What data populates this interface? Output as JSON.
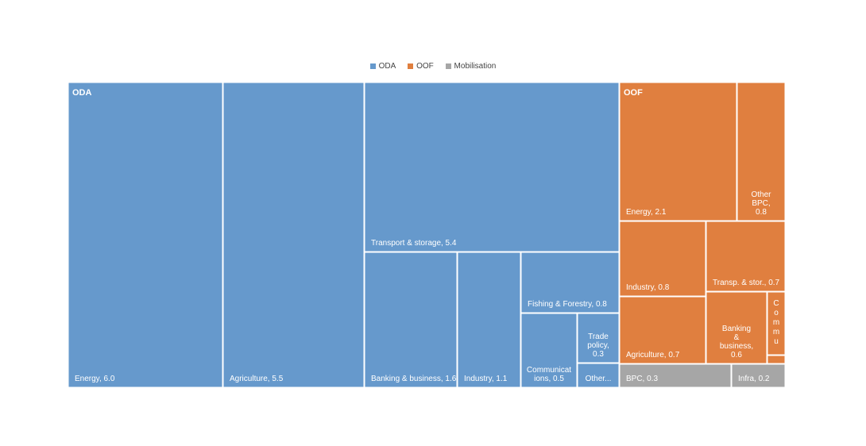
{
  "chart_data": {
    "type": "treemap",
    "legend": [
      {
        "name": "ODA",
        "color": "#6699CC"
      },
      {
        "name": "OOF",
        "color": "#E07F3F"
      },
      {
        "name": "Mobilisation",
        "color": "#A6A6A6"
      }
    ],
    "legend_position": "top-center",
    "groups": [
      {
        "name": "ODA",
        "color": "#6699CC",
        "items": [
          {
            "label": "Energy, 6.0",
            "value": 6.0
          },
          {
            "label": "Agriculture, 5.5",
            "value": 5.5
          },
          {
            "label": "Transport & storage, 5.4",
            "value": 5.4
          },
          {
            "label": "Banking & business, 1.6",
            "value": 1.6
          },
          {
            "label": "Industry, 1.1",
            "value": 1.1
          },
          {
            "label": "Fishing & Forestry, 0.8",
            "value": 0.8
          },
          {
            "label": "Communicat ions, 0.5",
            "value": 0.5
          },
          {
            "label": "Trade policy, 0.3",
            "value": 0.3
          },
          {
            "label": "Other...",
            "value": 0.2
          }
        ]
      },
      {
        "name": "OOF",
        "color": "#E07F3F",
        "items": [
          {
            "label": "Energy, 2.1",
            "value": 2.1
          },
          {
            "label": "Other BPC, 0.8",
            "value": 0.8
          },
          {
            "label": "Industry, 0.8",
            "value": 0.8
          },
          {
            "label": "Transp. & stor., 0.7",
            "value": 0.7
          },
          {
            "label": "Agriculture, 0.7",
            "value": 0.7
          },
          {
            "label": "Banking & business, 0.6",
            "value": 0.6
          },
          {
            "label": "Commu",
            "value": 0.2
          },
          {
            "label": "",
            "value": 0.03
          }
        ]
      },
      {
        "name": "Mobilisation",
        "color": "#A6A6A6",
        "items": [
          {
            "label": "BPC, 0.3",
            "value": 0.3
          },
          {
            "label": "Infra, 0.2",
            "value": 0.2
          }
        ]
      }
    ]
  }
}
